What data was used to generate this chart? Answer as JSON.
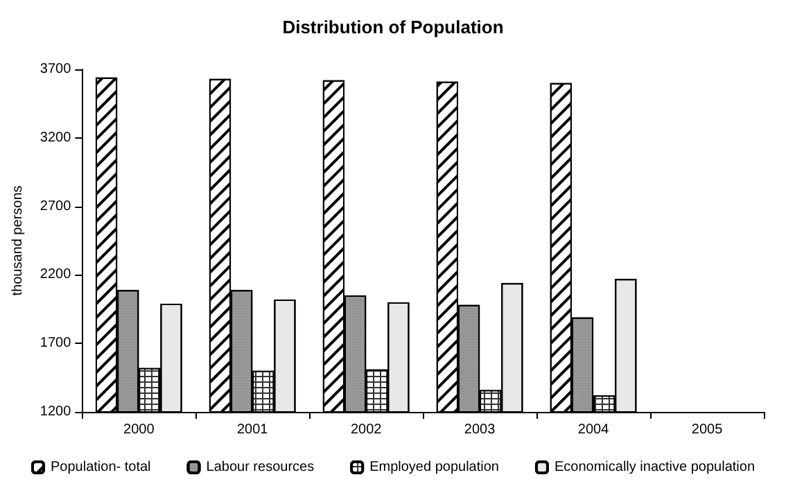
{
  "chart_data": {
    "type": "bar",
    "title": "Distribution of Population",
    "ylabel": "thousand persons",
    "categories": [
      "2000",
      "2001",
      "2002",
      "2003",
      "2004",
      "2005"
    ],
    "series": [
      {
        "name": "Population- total",
        "color": "#ffffff",
        "values": [
          3640,
          3630,
          3620,
          3610,
          3600,
          null
        ]
      },
      {
        "name": "Labour resources",
        "color": "#999999",
        "values": [
          2090,
          2090,
          2050,
          1980,
          1890,
          null
        ]
      },
      {
        "name": "Employed population",
        "color": "#333333",
        "values": [
          1520,
          1500,
          1510,
          1360,
          1320,
          null
        ]
      },
      {
        "name": "Economically inactive population",
        "color": "#e8e8e8",
        "values": [
          1990,
          2020,
          2000,
          2140,
          2170,
          null
        ]
      }
    ],
    "ylim": [
      1200,
      3700
    ],
    "yticks": [
      1200,
      1700,
      2200,
      2700,
      3200,
      3700
    ],
    "grid": false,
    "legend": "bottom"
  }
}
